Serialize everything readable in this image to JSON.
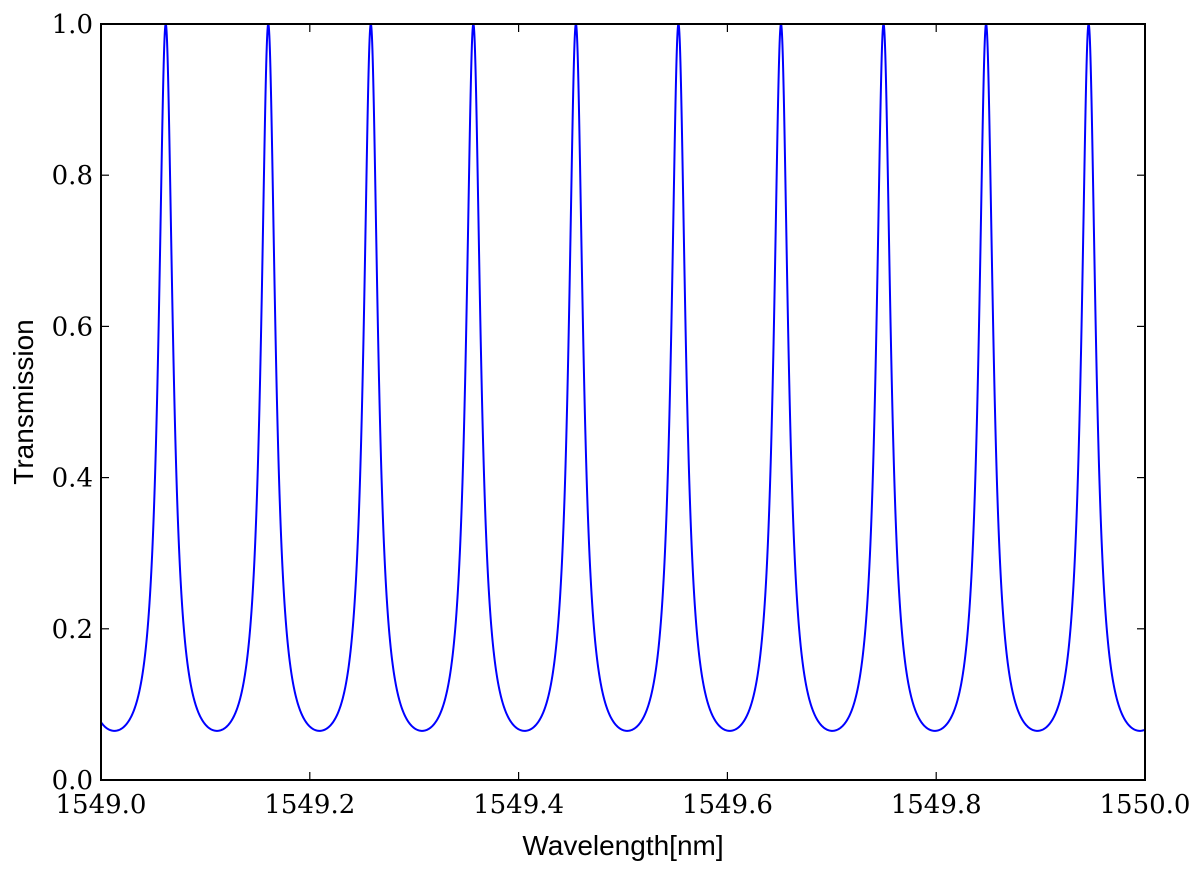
{
  "chart_data": {
    "type": "line",
    "title": "",
    "xlabel": "Wavelength[nm]",
    "ylabel": "Transmission",
    "xlim": [
      1549.0,
      1550.0
    ],
    "ylim": [
      0.0,
      1.0
    ],
    "x_ticks": [
      "1549.0",
      "1549.2",
      "1549.4",
      "1549.6",
      "1549.8",
      "1550.0"
    ],
    "y_ticks": [
      "0.0",
      "0.2",
      "0.4",
      "0.6",
      "0.8",
      "1.0"
    ],
    "grid": false,
    "legend": "none",
    "series": [
      {
        "color": "#0000ff",
        "peaks": [
          {
            "x": 1549.062,
            "y": 1.0
          },
          {
            "x": 1549.16,
            "y": 1.0
          },
          {
            "x": 1549.258,
            "y": 1.0
          },
          {
            "x": 1549.357,
            "y": 1.0
          },
          {
            "x": 1549.455,
            "y": 1.0
          },
          {
            "x": 1549.553,
            "y": 1.0
          },
          {
            "x": 1549.651,
            "y": 1.0
          },
          {
            "x": 1549.749,
            "y": 1.0
          },
          {
            "x": 1549.847,
            "y": 1.0
          },
          {
            "x": 1549.946,
            "y": 1.0
          }
        ],
        "min_transmission": 0.065
      }
    ]
  }
}
